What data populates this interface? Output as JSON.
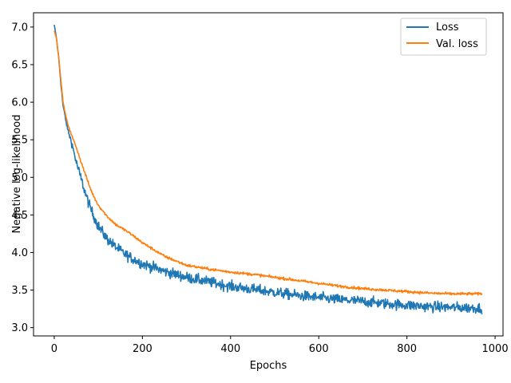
{
  "chart_data": {
    "type": "line",
    "title": "",
    "xlabel": "Epochs",
    "ylabel": "Negative log-likelihood",
    "xlim": [
      -47,
      1018
    ],
    "ylim": [
      2.89,
      7.19
    ],
    "xticks": [
      0,
      200,
      400,
      600,
      800,
      1000
    ],
    "yticks": [
      3.0,
      3.5,
      4.0,
      4.5,
      5.0,
      5.5,
      6.0,
      6.5,
      7.0
    ],
    "xtick_labels": [
      "0",
      "200",
      "400",
      "600",
      "800",
      "1000"
    ],
    "ytick_labels": [
      "3.0",
      "3.5",
      "4.0",
      "4.5",
      "5.0",
      "5.5",
      "6.0",
      "6.5",
      "7.0"
    ],
    "grid": false,
    "legend_position": "top-right",
    "series": [
      {
        "name": "Loss",
        "color": "#1f77b4",
        "noise": 0.07,
        "points": [
          [
            0,
            7.03
          ],
          [
            5,
            6.85
          ],
          [
            10,
            6.6
          ],
          [
            15,
            6.25
          ],
          [
            20,
            5.95
          ],
          [
            25,
            5.8
          ],
          [
            30,
            5.65
          ],
          [
            40,
            5.45
          ],
          [
            50,
            5.2
          ],
          [
            60,
            5.0
          ],
          [
            70,
            4.8
          ],
          [
            80,
            4.62
          ],
          [
            90,
            4.48
          ],
          [
            100,
            4.35
          ],
          [
            120,
            4.18
          ],
          [
            140,
            4.07
          ],
          [
            160,
            3.98
          ],
          [
            180,
            3.91
          ],
          [
            200,
            3.85
          ],
          [
            250,
            3.75
          ],
          [
            300,
            3.67
          ],
          [
            350,
            3.61
          ],
          [
            400,
            3.55
          ],
          [
            450,
            3.51
          ],
          [
            500,
            3.47
          ],
          [
            550,
            3.43
          ],
          [
            600,
            3.4
          ],
          [
            650,
            3.37
          ],
          [
            700,
            3.35
          ],
          [
            750,
            3.32
          ],
          [
            800,
            3.3
          ],
          [
            850,
            3.28
          ],
          [
            900,
            3.27
          ],
          [
            970,
            3.26
          ]
        ]
      },
      {
        "name": "Val. loss",
        "color": "#ff7f0e",
        "noise": 0.018,
        "points": [
          [
            0,
            6.95
          ],
          [
            5,
            6.85
          ],
          [
            10,
            6.6
          ],
          [
            15,
            6.3
          ],
          [
            20,
            6.0
          ],
          [
            25,
            5.85
          ],
          [
            30,
            5.72
          ],
          [
            40,
            5.55
          ],
          [
            50,
            5.4
          ],
          [
            60,
            5.22
          ],
          [
            70,
            5.05
          ],
          [
            80,
            4.88
          ],
          [
            90,
            4.74
          ],
          [
            100,
            4.63
          ],
          [
            120,
            4.48
          ],
          [
            140,
            4.37
          ],
          [
            160,
            4.3
          ],
          [
            180,
            4.22
          ],
          [
            200,
            4.13
          ],
          [
            250,
            3.95
          ],
          [
            300,
            3.83
          ],
          [
            350,
            3.78
          ],
          [
            400,
            3.74
          ],
          [
            450,
            3.71
          ],
          [
            500,
            3.67
          ],
          [
            550,
            3.63
          ],
          [
            600,
            3.59
          ],
          [
            650,
            3.55
          ],
          [
            700,
            3.52
          ],
          [
            750,
            3.5
          ],
          [
            800,
            3.48
          ],
          [
            850,
            3.46
          ],
          [
            900,
            3.45
          ],
          [
            970,
            3.45
          ]
        ]
      }
    ]
  }
}
